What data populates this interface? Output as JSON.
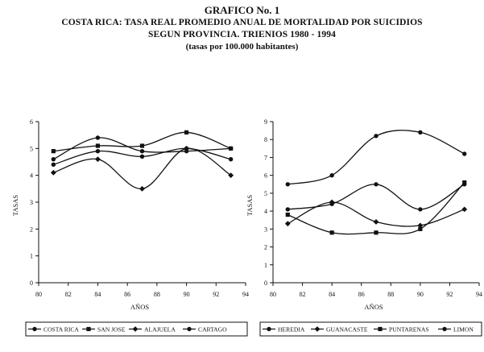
{
  "titles": {
    "line1": "GRAFICO No. 1",
    "line2": "COSTA RICA: TASA REAL PROMEDIO ANUAL DE MORTALIDAD POR SUICIDIOS",
    "line3": "SEGUN PROVINCIA. TRIENIOS 1980 - 1994",
    "line4": "(tasas por 100.000 habitantes)"
  },
  "chart_data": [
    {
      "type": "line",
      "xlabel": "AÑOS",
      "ylabel": "TASAS",
      "xlim": [
        80,
        94
      ],
      "ylim": [
        0,
        6
      ],
      "xticks": [
        "80",
        "82",
        "84",
        "86",
        "88",
        "90",
        "92",
        "94"
      ],
      "yticks": [
        "0",
        "1",
        "2",
        "3",
        "4",
        "5",
        "6"
      ],
      "x": [
        81,
        84,
        87,
        90,
        93
      ],
      "legend_position": "bottom",
      "series": [
        {
          "name": "COSTA RICA",
          "marker": "dot",
          "values": [
            4.4,
            4.9,
            4.7,
            5.0,
            4.6
          ]
        },
        {
          "name": "SAN JOSE",
          "marker": "square",
          "values": [
            4.9,
            5.1,
            5.1,
            5.6,
            5.0
          ]
        },
        {
          "name": "ALAJUELA",
          "marker": "diamond",
          "values": [
            4.1,
            4.6,
            3.5,
            5.0,
            4.0
          ]
        },
        {
          "name": "CARTAGO",
          "marker": "dot",
          "values": [
            4.6,
            5.4,
            4.9,
            4.9,
            5.0
          ]
        }
      ]
    },
    {
      "type": "line",
      "xlabel": "AÑOS",
      "ylabel": "TASAS",
      "xlim": [
        80,
        94
      ],
      "ylim": [
        0,
        9
      ],
      "xticks": [
        "80",
        "82",
        "84",
        "86",
        "88",
        "90",
        "92",
        "94"
      ],
      "yticks": [
        "0",
        "1",
        "2",
        "3",
        "4",
        "5",
        "6",
        "7",
        "8",
        "9"
      ],
      "x": [
        81,
        84,
        87,
        90,
        93
      ],
      "legend_position": "bottom",
      "series": [
        {
          "name": "HEREDIA",
          "marker": "dot",
          "values": [
            4.1,
            4.4,
            5.5,
            4.1,
            5.5
          ]
        },
        {
          "name": "GUANACASTE",
          "marker": "diamond",
          "values": [
            3.3,
            4.5,
            3.4,
            3.2,
            4.1
          ]
        },
        {
          "name": "PUNTARENAS",
          "marker": "square",
          "values": [
            3.8,
            2.8,
            2.8,
            3.0,
            5.6
          ]
        },
        {
          "name": "LIMON",
          "marker": "dot",
          "values": [
            5.5,
            6.0,
            8.2,
            8.4,
            7.2
          ]
        }
      ]
    }
  ]
}
